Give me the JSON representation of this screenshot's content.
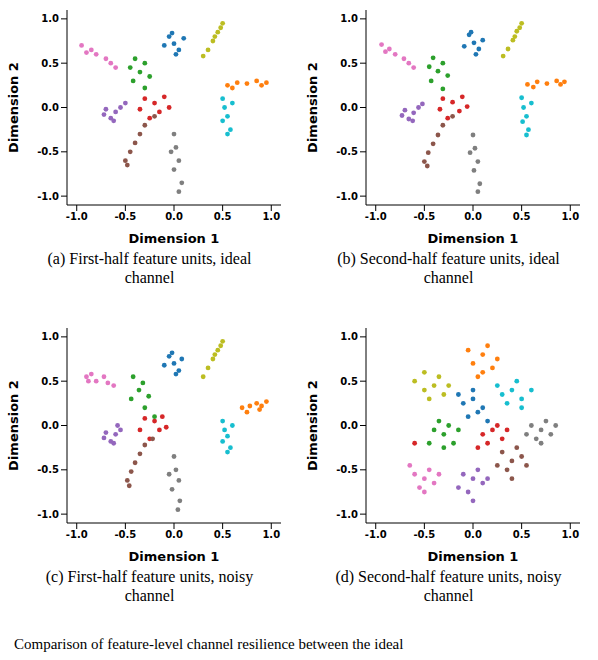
{
  "caption": "Comparison of feature-level channel resilience between the ideal",
  "chart_data": [
    {
      "type": "scatter",
      "title": "(a) First-half feature units, ideal channel",
      "x_label": "Dimension 1",
      "y_label": "Dimension 2",
      "xlim": [
        -1.1,
        1.1
      ],
      "ylim": [
        -1.1,
        1.1
      ],
      "xticks": [
        {
          "value": -1,
          "label": "-1.0"
        },
        {
          "value": -0.5,
          "label": "-0.5"
        },
        {
          "value": 0,
          "label": "0.0"
        },
        {
          "value": 0.5,
          "label": "0.5"
        },
        {
          "value": 1,
          "label": "1.0"
        }
      ],
      "yticks": [
        {
          "value": -1,
          "label": "-1.0"
        },
        {
          "value": -0.5,
          "label": "-0.5"
        },
        {
          "value": 0,
          "label": "0.0"
        },
        {
          "value": 0.5,
          "label": "0.5"
        },
        {
          "value": 1,
          "label": "1.0"
        }
      ],
      "series": [
        {
          "color": "#1f77b4",
          "x": [
            -0.05,
            0.0,
            0.05,
            0.1,
            -0.1,
            0.02,
            -0.02
          ],
          "y": [
            0.8,
            0.72,
            0.65,
            0.78,
            0.7,
            0.6,
            0.84
          ]
        },
        {
          "color": "#ff7f0e",
          "x": [
            0.55,
            0.65,
            0.75,
            0.85,
            0.95,
            0.6,
            0.9
          ],
          "y": [
            0.25,
            0.28,
            0.27,
            0.3,
            0.28,
            0.22,
            0.25
          ]
        },
        {
          "color": "#2ca02c",
          "x": [
            -0.4,
            -0.3,
            -0.35,
            -0.25,
            -0.42,
            -0.3,
            -0.45
          ],
          "y": [
            0.55,
            0.5,
            0.4,
            0.35,
            0.3,
            0.22,
            0.45
          ]
        },
        {
          "color": "#d62728",
          "x": [
            -0.3,
            -0.2,
            -0.1,
            -0.15,
            -0.25,
            -0.05,
            -0.35
          ],
          "y": [
            0.1,
            0.05,
            0.12,
            -0.05,
            -0.12,
            0.0,
            -0.02
          ]
        },
        {
          "color": "#9467bd",
          "x": [
            -0.7,
            -0.6,
            -0.65,
            -0.55,
            -0.72,
            -0.5,
            -0.62
          ],
          "y": [
            -0.02,
            -0.05,
            -0.12,
            0.0,
            -0.08,
            0.05,
            -0.15
          ]
        },
        {
          "color": "#8c564b",
          "x": [
            -0.5,
            -0.45,
            -0.4,
            -0.35,
            -0.3,
            -0.2,
            -0.48
          ],
          "y": [
            -0.6,
            -0.5,
            -0.4,
            -0.3,
            -0.2,
            -0.1,
            -0.65
          ]
        },
        {
          "color": "#e377c2",
          "x": [
            -0.95,
            -0.85,
            -0.8,
            -0.7,
            -0.65,
            -0.6,
            -0.9
          ],
          "y": [
            0.7,
            0.65,
            0.6,
            0.55,
            0.5,
            0.45,
            0.62
          ]
        },
        {
          "color": "#7f7f7f",
          "x": [
            0.0,
            0.02,
            0.05,
            0.0,
            0.08,
            0.05,
            -0.03
          ],
          "y": [
            -0.3,
            -0.45,
            -0.6,
            -0.7,
            -0.85,
            -0.95,
            -0.5
          ]
        },
        {
          "color": "#bcbd22",
          "x": [
            0.5,
            0.45,
            0.4,
            0.35,
            0.3,
            0.48,
            0.42
          ],
          "y": [
            0.95,
            0.85,
            0.75,
            0.65,
            0.58,
            0.9,
            0.8
          ]
        },
        {
          "color": "#17becf",
          "x": [
            0.5,
            0.52,
            0.55,
            0.5,
            0.58,
            0.55,
            0.6
          ],
          "y": [
            0.1,
            0.0,
            -0.1,
            -0.15,
            -0.25,
            -0.3,
            0.05
          ]
        }
      ]
    },
    {
      "type": "scatter",
      "title": "(b) Second-half feature units, ideal channel",
      "x_label": "Dimension 1",
      "y_label": "Dimension 2",
      "xlim": [
        -1.1,
        1.1
      ],
      "ylim": [
        -1.1,
        1.1
      ],
      "xticks": [
        {
          "value": -1,
          "label": "-1.0"
        },
        {
          "value": -0.5,
          "label": "-0.5"
        },
        {
          "value": 0,
          "label": "0.0"
        },
        {
          "value": 0.5,
          "label": "0.5"
        },
        {
          "value": 1,
          "label": "1.0"
        }
      ],
      "yticks": [
        {
          "value": -1,
          "label": "-1.0"
        },
        {
          "value": -0.5,
          "label": "-0.5"
        },
        {
          "value": 0,
          "label": "0.0"
        },
        {
          "value": 0.5,
          "label": "0.5"
        },
        {
          "value": 1,
          "label": "1.0"
        }
      ],
      "series": [
        {
          "color": "#1f77b4",
          "x": [
            -0.04,
            0.01,
            0.06,
            0.1,
            -0.09,
            0.03,
            -0.02
          ],
          "y": [
            0.82,
            0.73,
            0.66,
            0.76,
            0.69,
            0.6,
            0.85
          ]
        },
        {
          "color": "#ff7f0e",
          "x": [
            0.56,
            0.66,
            0.76,
            0.86,
            0.94,
            0.62,
            0.9
          ],
          "y": [
            0.26,
            0.29,
            0.27,
            0.3,
            0.29,
            0.23,
            0.26
          ]
        },
        {
          "color": "#2ca02c",
          "x": [
            -0.41,
            -0.31,
            -0.36,
            -0.26,
            -0.43,
            -0.31,
            -0.45
          ],
          "y": [
            0.56,
            0.5,
            0.41,
            0.36,
            0.3,
            0.21,
            0.46
          ]
        },
        {
          "color": "#d62728",
          "x": [
            -0.31,
            -0.21,
            -0.11,
            -0.14,
            -0.26,
            -0.06,
            -0.34
          ],
          "y": [
            0.1,
            0.06,
            0.12,
            -0.04,
            -0.12,
            0.01,
            -0.02
          ]
        },
        {
          "color": "#9467bd",
          "x": [
            -0.7,
            -0.61,
            -0.66,
            -0.56,
            -0.73,
            -0.52,
            -0.62
          ],
          "y": [
            -0.03,
            -0.06,
            -0.13,
            0.0,
            -0.09,
            0.04,
            -0.15
          ]
        },
        {
          "color": "#8c564b",
          "x": [
            -0.5,
            -0.46,
            -0.41,
            -0.36,
            -0.31,
            -0.21,
            -0.47
          ],
          "y": [
            -0.61,
            -0.51,
            -0.41,
            -0.31,
            -0.2,
            -0.1,
            -0.66
          ]
        },
        {
          "color": "#e377c2",
          "x": [
            -0.94,
            -0.86,
            -0.8,
            -0.71,
            -0.66,
            -0.61,
            -0.9
          ],
          "y": [
            0.71,
            0.66,
            0.6,
            0.55,
            0.5,
            0.45,
            0.63
          ]
        },
        {
          "color": "#7f7f7f",
          "x": [
            0.0,
            0.02,
            0.05,
            0.01,
            0.07,
            0.05,
            -0.03
          ],
          "y": [
            -0.31,
            -0.46,
            -0.61,
            -0.71,
            -0.86,
            -0.95,
            -0.51
          ]
        },
        {
          "color": "#bcbd22",
          "x": [
            0.5,
            0.45,
            0.41,
            0.36,
            0.31,
            0.48,
            0.43
          ],
          "y": [
            0.95,
            0.86,
            0.76,
            0.66,
            0.58,
            0.9,
            0.8
          ]
        },
        {
          "color": "#17becf",
          "x": [
            0.5,
            0.52,
            0.55,
            0.51,
            0.57,
            0.55,
            0.6
          ],
          "y": [
            0.11,
            0.0,
            -0.1,
            -0.16,
            -0.25,
            -0.31,
            0.05
          ]
        }
      ]
    },
    {
      "type": "scatter",
      "title": "(c) First-half feature units, noisy channel",
      "x_label": "Dimension 1",
      "y_label": "Dimension 2",
      "xlim": [
        -1.1,
        1.1
      ],
      "ylim": [
        -1.1,
        1.1
      ],
      "xticks": [
        {
          "value": -1,
          "label": "-1.0"
        },
        {
          "value": -0.5,
          "label": "-0.5"
        },
        {
          "value": 0,
          "label": "0.0"
        },
        {
          "value": 0.5,
          "label": "0.5"
        },
        {
          "value": 1,
          "label": "1.0"
        }
      ],
      "yticks": [
        {
          "value": -1,
          "label": "-1.0"
        },
        {
          "value": -0.5,
          "label": "-0.5"
        },
        {
          "value": 0,
          "label": "0.0"
        },
        {
          "value": 0.5,
          "label": "0.5"
        },
        {
          "value": 1,
          "label": "1.0"
        }
      ],
      "series": [
        {
          "color": "#1f77b4",
          "x": [
            -0.05,
            0.0,
            0.05,
            0.08,
            -0.1,
            0.02,
            -0.02
          ],
          "y": [
            0.78,
            0.7,
            0.62,
            0.75,
            0.68,
            0.58,
            0.82
          ]
        },
        {
          "color": "#ff7f0e",
          "x": [
            0.7,
            0.78,
            0.85,
            0.9,
            0.95,
            0.75,
            0.88
          ],
          "y": [
            0.2,
            0.22,
            0.25,
            0.22,
            0.27,
            0.15,
            0.18
          ]
        },
        {
          "color": "#2ca02c",
          "x": [
            -0.42,
            -0.32,
            -0.36,
            -0.26,
            -0.44,
            -0.3,
            -0.2
          ],
          "y": [
            0.55,
            0.48,
            0.4,
            0.33,
            0.3,
            0.2,
            0.1
          ]
        },
        {
          "color": "#d62728",
          "x": [
            -0.3,
            -0.2,
            -0.12,
            -0.15,
            -0.25,
            -0.08,
            -0.35
          ],
          "y": [
            0.08,
            0.05,
            0.1,
            -0.05,
            -0.15,
            -0.02,
            -0.05
          ]
        },
        {
          "color": "#9467bd",
          "x": [
            -0.7,
            -0.6,
            -0.65,
            -0.55,
            -0.72,
            -0.58,
            -0.62
          ],
          "y": [
            -0.08,
            -0.1,
            -0.18,
            -0.05,
            -0.14,
            0.0,
            -0.2
          ]
        },
        {
          "color": "#8c564b",
          "x": [
            -0.48,
            -0.44,
            -0.4,
            -0.35,
            -0.3,
            -0.22,
            -0.46
          ],
          "y": [
            -0.62,
            -0.52,
            -0.42,
            -0.32,
            -0.22,
            -0.15,
            -0.68
          ]
        },
        {
          "color": "#e377c2",
          "x": [
            -0.9,
            -0.85,
            -0.8,
            -0.72,
            -0.68,
            -0.62,
            -0.88
          ],
          "y": [
            0.55,
            0.58,
            0.5,
            0.55,
            0.48,
            0.45,
            0.5
          ]
        },
        {
          "color": "#7f7f7f",
          "x": [
            0.0,
            0.02,
            0.05,
            -0.02,
            0.06,
            0.04,
            -0.05
          ],
          "y": [
            -0.35,
            -0.5,
            -0.62,
            -0.72,
            -0.85,
            -0.95,
            -0.55
          ]
        },
        {
          "color": "#bcbd22",
          "x": [
            0.5,
            0.45,
            0.4,
            0.35,
            0.3,
            0.48,
            0.42
          ],
          "y": [
            0.95,
            0.85,
            0.75,
            0.65,
            0.55,
            0.9,
            0.8
          ]
        },
        {
          "color": "#17becf",
          "x": [
            0.5,
            0.52,
            0.55,
            0.5,
            0.58,
            0.55,
            0.6
          ],
          "y": [
            0.05,
            -0.05,
            -0.12,
            -0.18,
            -0.25,
            -0.3,
            0.0
          ]
        }
      ]
    },
    {
      "type": "scatter",
      "title": "(d) Second-half feature units, noisy channel",
      "x_label": "Dimension 1",
      "y_label": "Dimension 2",
      "xlim": [
        -1.1,
        1.1
      ],
      "ylim": [
        -1.1,
        1.1
      ],
      "xticks": [
        {
          "value": -1,
          "label": "-1.0"
        },
        {
          "value": -0.5,
          "label": "-0.5"
        },
        {
          "value": 0,
          "label": "0.0"
        },
        {
          "value": 0.5,
          "label": "0.5"
        },
        {
          "value": 1,
          "label": "1.0"
        }
      ],
      "yticks": [
        {
          "value": -1,
          "label": "-1.0"
        },
        {
          "value": -0.5,
          "label": "-0.5"
        },
        {
          "value": 0,
          "label": "0.0"
        },
        {
          "value": 0.5,
          "label": "0.5"
        },
        {
          "value": 1,
          "label": "1.0"
        }
      ],
      "series": [
        {
          "color": "#1f77b4",
          "x": [
            -0.1,
            0.0,
            0.1,
            -0.05,
            0.05,
            -0.15,
            0.15,
            0.0
          ],
          "y": [
            0.25,
            0.3,
            0.2,
            0.1,
            0.15,
            0.35,
            0.05,
            0.4
          ]
        },
        {
          "color": "#ff7f0e",
          "x": [
            0.0,
            0.1,
            0.2,
            0.05,
            0.15,
            -0.05,
            0.25,
            0.1
          ],
          "y": [
            0.7,
            0.8,
            0.65,
            0.55,
            0.9,
            0.85,
            0.75,
            0.6
          ]
        },
        {
          "color": "#2ca02c",
          "x": [
            -0.4,
            -0.3,
            -0.2,
            -0.35,
            -0.25,
            -0.45,
            -0.15,
            -0.3
          ],
          "y": [
            -0.05,
            -0.1,
            -0.2,
            0.05,
            0.0,
            -0.2,
            -0.05,
            -0.25
          ]
        },
        {
          "color": "#d62728",
          "x": [
            0.1,
            0.2,
            0.3,
            0.15,
            0.25,
            0.05,
            0.35,
            -0.6
          ],
          "y": [
            -0.1,
            -0.05,
            -0.15,
            -0.2,
            0.0,
            -0.25,
            -0.05,
            -0.2
          ]
        },
        {
          "color": "#9467bd",
          "x": [
            -0.1,
            0.0,
            0.1,
            -0.05,
            0.05,
            0.15,
            -0.15,
            0.0
          ],
          "y": [
            -0.55,
            -0.6,
            -0.65,
            -0.75,
            -0.5,
            -0.6,
            -0.7,
            -0.85
          ]
        },
        {
          "color": "#8c564b",
          "x": [
            0.3,
            0.4,
            0.5,
            0.35,
            0.45,
            0.25,
            0.55,
            0.4
          ],
          "y": [
            -0.3,
            -0.4,
            -0.35,
            -0.5,
            -0.25,
            -0.45,
            -0.45,
            -0.6
          ]
        },
        {
          "color": "#e377c2",
          "x": [
            -0.6,
            -0.5,
            -0.4,
            -0.55,
            -0.45,
            -0.35,
            -0.65,
            -0.5
          ],
          "y": [
            -0.55,
            -0.6,
            -0.65,
            -0.7,
            -0.5,
            -0.55,
            -0.45,
            -0.75
          ]
        },
        {
          "color": "#7f7f7f",
          "x": [
            0.6,
            0.7,
            0.8,
            0.65,
            0.75,
            0.55,
            0.85,
            0.7
          ],
          "y": [
            0.0,
            -0.05,
            -0.1,
            -0.15,
            0.05,
            -0.1,
            0.0,
            -0.2
          ]
        },
        {
          "color": "#bcbd22",
          "x": [
            -0.5,
            -0.4,
            -0.3,
            -0.45,
            -0.35,
            -0.6,
            -0.25,
            -0.5
          ],
          "y": [
            0.4,
            0.45,
            0.35,
            0.3,
            0.55,
            0.5,
            0.45,
            0.6
          ]
        },
        {
          "color": "#17becf",
          "x": [
            0.3,
            0.4,
            0.5,
            0.35,
            0.45,
            0.6,
            0.25,
            0.5
          ],
          "y": [
            0.35,
            0.4,
            0.3,
            0.25,
            0.5,
            0.4,
            0.45,
            0.2
          ]
        }
      ]
    }
  ]
}
